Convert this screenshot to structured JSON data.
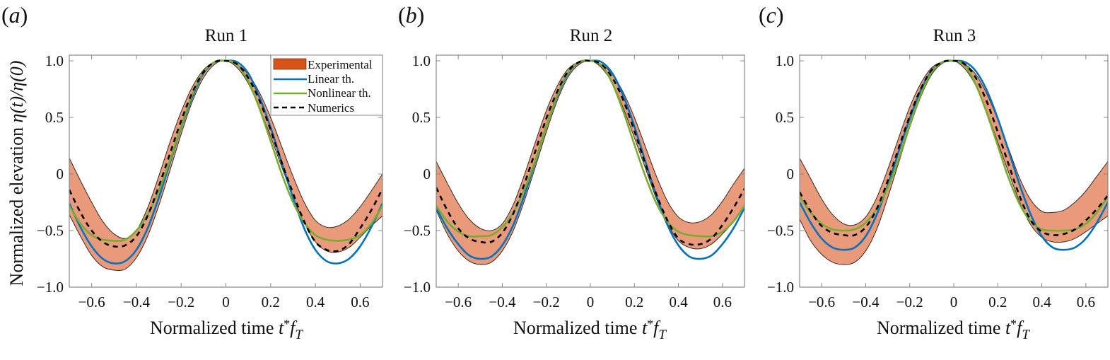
{
  "figure": {
    "ylabel_prefix": "Normalized elevation ",
    "ylabel_math": "η(t)/η(0)",
    "xlabel_prefix": "Normalized time ",
    "xlabel_math_t": "t",
    "xlabel_math_star": "*",
    "xlabel_math_f": "f",
    "xlabel_math_sub": "T",
    "colors": {
      "experimental_fill": "#E99A7B",
      "experimental_legend": "#D95319",
      "experimental_edge": "#3a2a22",
      "linear": "#0072BD",
      "nonlinear": "#77AC30",
      "numerics": "#000000",
      "axis": "#888888"
    },
    "legend": {
      "items": [
        {
          "label": "Experimental",
          "kind": "patch"
        },
        {
          "label": "Linear th.",
          "kind": "line-blue"
        },
        {
          "label": "Nonlinear th.",
          "kind": "line-green"
        },
        {
          "label": "Numerics",
          "kind": "dashed"
        }
      ]
    }
  },
  "chart_data": [
    {
      "type": "line",
      "panel_label": "(a)",
      "panel_letter": "a",
      "title": "Run 1",
      "xlabel": "Normalized time t*f_T",
      "ylabel": "Normalized elevation η(t)/η(0)",
      "xlim": [
        -0.7,
        0.7
      ],
      "ylim": [
        -1.0,
        1.0
      ],
      "xticks": [
        -0.6,
        -0.4,
        -0.2,
        0,
        0.2,
        0.4,
        0.6
      ],
      "xtick_labels": [
        "−0.6",
        "−0.4",
        "−0.2",
        "0",
        "0.2",
        "0.4",
        "0.6"
      ],
      "yticks": [
        1.0,
        0.5,
        0,
        -0.5,
        -1.0
      ],
      "ytick_labels": [
        "1.0",
        "0.5",
        "0",
        "−0.5",
        "−1.0"
      ],
      "legend_placement": "top-right",
      "x": [
        -0.7,
        -0.65,
        -0.6,
        -0.55,
        -0.5,
        -0.45,
        -0.4,
        -0.35,
        -0.3,
        -0.25,
        -0.2,
        -0.15,
        -0.1,
        -0.05,
        0,
        0.05,
        0.1,
        0.15,
        0.2,
        0.25,
        0.3,
        0.35,
        0.4,
        0.45,
        0.5,
        0.55,
        0.6,
        0.65,
        0.7
      ],
      "series": [
        {
          "name": "Experimental upper",
          "values": [
            0.14,
            -0.06,
            -0.25,
            -0.42,
            -0.53,
            -0.57,
            -0.5,
            -0.3,
            -0.02,
            0.28,
            0.55,
            0.77,
            0.92,
            0.99,
            1.0,
            0.97,
            0.88,
            0.72,
            0.5,
            0.24,
            -0.02,
            -0.25,
            -0.41,
            -0.47,
            -0.46,
            -0.4,
            -0.29,
            -0.15,
            0.0
          ]
        },
        {
          "name": "Experimental lower",
          "values": [
            -0.36,
            -0.55,
            -0.72,
            -0.82,
            -0.85,
            -0.84,
            -0.74,
            -0.55,
            -0.28,
            0.03,
            0.35,
            0.64,
            0.85,
            0.97,
            1.0,
            0.94,
            0.8,
            0.58,
            0.33,
            0.06,
            -0.2,
            -0.43,
            -0.6,
            -0.68,
            -0.69,
            -0.65,
            -0.56,
            -0.46,
            -0.37
          ]
        },
        {
          "name": "Linear th.",
          "values": [
            -0.26,
            -0.47,
            -0.64,
            -0.75,
            -0.79,
            -0.77,
            -0.67,
            -0.48,
            -0.21,
            0.1,
            0.41,
            0.68,
            0.89,
            0.99,
            1.0,
            0.99,
            0.89,
            0.68,
            0.41,
            0.1,
            -0.21,
            -0.48,
            -0.67,
            -0.77,
            -0.79,
            -0.75,
            -0.64,
            -0.47,
            -0.26
          ]
        },
        {
          "name": "Nonlinear th.",
          "values": [
            -0.28,
            -0.44,
            -0.54,
            -0.58,
            -0.59,
            -0.58,
            -0.5,
            -0.36,
            -0.15,
            0.12,
            0.42,
            0.7,
            0.9,
            0.99,
            1.0,
            0.97,
            0.82,
            0.58,
            0.29,
            0.0,
            -0.25,
            -0.43,
            -0.54,
            -0.58,
            -0.59,
            -0.58,
            -0.54,
            -0.44,
            -0.28
          ]
        },
        {
          "name": "Numerics",
          "values": [
            -0.14,
            -0.34,
            -0.5,
            -0.6,
            -0.64,
            -0.63,
            -0.55,
            -0.37,
            -0.11,
            0.18,
            0.47,
            0.72,
            0.9,
            0.99,
            1.0,
            0.97,
            0.85,
            0.65,
            0.39,
            0.1,
            -0.17,
            -0.42,
            -0.6,
            -0.67,
            -0.68,
            -0.62,
            -0.48,
            -0.32,
            -0.13
          ]
        }
      ]
    },
    {
      "type": "line",
      "panel_label": "(b)",
      "panel_letter": "b",
      "title": "Run 2",
      "xlabel": "Normalized time t*f_T",
      "ylabel": "",
      "xlim": [
        -0.7,
        0.7
      ],
      "ylim": [
        -1.0,
        1.0
      ],
      "xticks": [
        -0.6,
        -0.4,
        -0.2,
        0,
        0.2,
        0.4,
        0.6
      ],
      "xtick_labels": [
        "−0.6",
        "−0.4",
        "−0.2",
        "0",
        "0.2",
        "0.4",
        "0.6"
      ],
      "yticks": [
        1.0,
        0.5,
        0,
        -0.5,
        -1.0
      ],
      "ytick_labels": [
        "1.0",
        "0.5",
        "0",
        "−0.5",
        "−1.0"
      ],
      "x": [
        -0.7,
        -0.65,
        -0.6,
        -0.55,
        -0.5,
        -0.45,
        -0.4,
        -0.35,
        -0.3,
        -0.25,
        -0.2,
        -0.15,
        -0.1,
        -0.05,
        0,
        0.05,
        0.1,
        0.15,
        0.2,
        0.25,
        0.3,
        0.35,
        0.4,
        0.45,
        0.5,
        0.55,
        0.6,
        0.65,
        0.7
      ],
      "series": [
        {
          "name": "Experimental upper",
          "values": [
            0.11,
            -0.08,
            -0.26,
            -0.4,
            -0.48,
            -0.5,
            -0.44,
            -0.27,
            -0.01,
            0.28,
            0.56,
            0.78,
            0.93,
            0.99,
            1.0,
            0.97,
            0.88,
            0.72,
            0.5,
            0.24,
            -0.02,
            -0.24,
            -0.38,
            -0.43,
            -0.42,
            -0.36,
            -0.24,
            -0.09,
            0.05
          ]
        },
        {
          "name": "Experimental lower",
          "values": [
            -0.32,
            -0.53,
            -0.68,
            -0.77,
            -0.8,
            -0.78,
            -0.68,
            -0.5,
            -0.24,
            0.06,
            0.37,
            0.65,
            0.86,
            0.97,
            1.0,
            0.94,
            0.8,
            0.58,
            0.32,
            0.05,
            -0.22,
            -0.44,
            -0.59,
            -0.65,
            -0.66,
            -0.62,
            -0.53,
            -0.42,
            -0.28
          ]
        },
        {
          "name": "Linear th.",
          "values": [
            -0.3,
            -0.48,
            -0.62,
            -0.72,
            -0.75,
            -0.73,
            -0.63,
            -0.45,
            -0.19,
            0.11,
            0.42,
            0.69,
            0.89,
            0.99,
            1.0,
            0.99,
            0.89,
            0.69,
            0.42,
            0.11,
            -0.19,
            -0.45,
            -0.63,
            -0.73,
            -0.75,
            -0.72,
            -0.62,
            -0.48,
            -0.3
          ]
        },
        {
          "name": "Nonlinear th.",
          "values": [
            -0.28,
            -0.42,
            -0.51,
            -0.55,
            -0.55,
            -0.54,
            -0.47,
            -0.34,
            -0.14,
            0.12,
            0.42,
            0.7,
            0.9,
            0.99,
            1.0,
            0.96,
            0.8,
            0.55,
            0.26,
            -0.02,
            -0.26,
            -0.42,
            -0.51,
            -0.54,
            -0.55,
            -0.55,
            -0.51,
            -0.42,
            -0.28
          ]
        },
        {
          "name": "Numerics",
          "values": [
            -0.12,
            -0.32,
            -0.48,
            -0.57,
            -0.6,
            -0.6,
            -0.52,
            -0.35,
            -0.09,
            0.2,
            0.49,
            0.73,
            0.91,
            0.99,
            1.0,
            0.97,
            0.85,
            0.65,
            0.38,
            0.09,
            -0.18,
            -0.41,
            -0.57,
            -0.62,
            -0.62,
            -0.57,
            -0.45,
            -0.3,
            -0.13
          ]
        }
      ]
    },
    {
      "type": "line",
      "panel_label": "(c)",
      "panel_letter": "c",
      "title": "Run 3",
      "xlabel": "Normalized time t*f_T",
      "ylabel": "",
      "xlim": [
        -0.7,
        0.7
      ],
      "ylim": [
        -1.0,
        1.0
      ],
      "xticks": [
        -0.6,
        -0.4,
        -0.2,
        0,
        0.2,
        0.4,
        0.6
      ],
      "xtick_labels": [
        "−0.6",
        "−0.4",
        "−0.2",
        "0",
        "0.2",
        "0.4",
        "0.6"
      ],
      "yticks": [
        1.0,
        0.5,
        0,
        -0.5,
        -1.0
      ],
      "ytick_labels": [
        "1.0",
        "0.5",
        "0",
        "−0.5",
        "−1.0"
      ],
      "x": [
        -0.7,
        -0.65,
        -0.6,
        -0.55,
        -0.5,
        -0.45,
        -0.4,
        -0.35,
        -0.3,
        -0.25,
        -0.2,
        -0.15,
        -0.1,
        -0.05,
        0,
        0.05,
        0.1,
        0.15,
        0.2,
        0.25,
        0.3,
        0.35,
        0.4,
        0.45,
        0.5,
        0.55,
        0.6,
        0.65,
        0.7
      ],
      "series": [
        {
          "name": "Experimental upper",
          "values": [
            0.14,
            -0.04,
            -0.22,
            -0.36,
            -0.44,
            -0.45,
            -0.38,
            -0.21,
            0.04,
            0.32,
            0.59,
            0.8,
            0.94,
            0.99,
            1.0,
            0.97,
            0.88,
            0.71,
            0.48,
            0.22,
            -0.04,
            -0.23,
            -0.33,
            -0.34,
            -0.32,
            -0.25,
            -0.15,
            -0.02,
            0.11
          ]
        },
        {
          "name": "Experimental lower",
          "values": [
            -0.4,
            -0.59,
            -0.71,
            -0.78,
            -0.8,
            -0.78,
            -0.68,
            -0.49,
            -0.21,
            0.1,
            0.41,
            0.68,
            0.88,
            0.98,
            1.0,
            0.93,
            0.78,
            0.55,
            0.28,
            0.01,
            -0.25,
            -0.45,
            -0.56,
            -0.6,
            -0.6,
            -0.57,
            -0.51,
            -0.44,
            -0.37
          ]
        },
        {
          "name": "Linear th.",
          "values": [
            -0.25,
            -0.43,
            -0.57,
            -0.65,
            -0.67,
            -0.65,
            -0.55,
            -0.36,
            -0.1,
            0.2,
            0.49,
            0.74,
            0.91,
            0.99,
            1.0,
            0.99,
            0.91,
            0.74,
            0.49,
            0.2,
            -0.1,
            -0.36,
            -0.55,
            -0.65,
            -0.67,
            -0.65,
            -0.57,
            -0.43,
            -0.25
          ]
        },
        {
          "name": "Nonlinear th.",
          "values": [
            -0.2,
            -0.34,
            -0.44,
            -0.49,
            -0.5,
            -0.49,
            -0.43,
            -0.31,
            -0.12,
            0.13,
            0.43,
            0.7,
            0.9,
            0.99,
            1.0,
            0.96,
            0.79,
            0.54,
            0.25,
            -0.04,
            -0.27,
            -0.42,
            -0.49,
            -0.5,
            -0.5,
            -0.49,
            -0.44,
            -0.34,
            -0.2
          ]
        },
        {
          "name": "Numerics",
          "values": [
            -0.16,
            -0.33,
            -0.46,
            -0.52,
            -0.54,
            -0.54,
            -0.47,
            -0.31,
            -0.06,
            0.23,
            0.51,
            0.75,
            0.92,
            0.99,
            1.0,
            0.97,
            0.85,
            0.64,
            0.37,
            0.08,
            -0.2,
            -0.41,
            -0.51,
            -0.54,
            -0.53,
            -0.49,
            -0.41,
            -0.31,
            -0.19
          ]
        }
      ]
    }
  ]
}
